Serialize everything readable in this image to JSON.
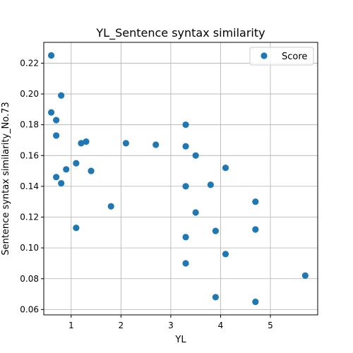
{
  "chart_data": {
    "type": "scatter",
    "title": "YL_Sentence syntax similarity",
    "xlabel": "YL",
    "ylabel": "Sentence syntax similarity_No.73",
    "xlim": [
      0.45,
      5.95
    ],
    "ylim": [
      0.0565,
      0.2335
    ],
    "xticks": [
      1,
      2,
      3,
      4,
      5
    ],
    "yticks": [
      0.06,
      0.08,
      0.1,
      0.12,
      0.14,
      0.16,
      0.18,
      0.2,
      0.22
    ],
    "grid": true,
    "legend_position": "top-right",
    "series": [
      {
        "name": "Score",
        "color": "#1f77b4",
        "points": [
          [
            0.6,
            0.225
          ],
          [
            0.8,
            0.199
          ],
          [
            0.6,
            0.188
          ],
          [
            0.7,
            0.183
          ],
          [
            0.7,
            0.173
          ],
          [
            0.7,
            0.146
          ],
          [
            0.8,
            0.142
          ],
          [
            0.9,
            0.151
          ],
          [
            1.1,
            0.155
          ],
          [
            1.2,
            0.168
          ],
          [
            1.3,
            0.169
          ],
          [
            1.4,
            0.15
          ],
          [
            1.1,
            0.113
          ],
          [
            1.8,
            0.127
          ],
          [
            2.1,
            0.168
          ],
          [
            2.7,
            0.167
          ],
          [
            3.3,
            0.18
          ],
          [
            3.3,
            0.166
          ],
          [
            3.5,
            0.16
          ],
          [
            3.3,
            0.14
          ],
          [
            3.5,
            0.123
          ],
          [
            3.3,
            0.107
          ],
          [
            3.3,
            0.09
          ],
          [
            3.8,
            0.141
          ],
          [
            3.9,
            0.111
          ],
          [
            3.9,
            0.068
          ],
          [
            4.1,
            0.152
          ],
          [
            4.1,
            0.096
          ],
          [
            4.7,
            0.13
          ],
          [
            4.7,
            0.112
          ],
          [
            4.7,
            0.065
          ],
          [
            5.7,
            0.082
          ]
        ]
      }
    ]
  }
}
